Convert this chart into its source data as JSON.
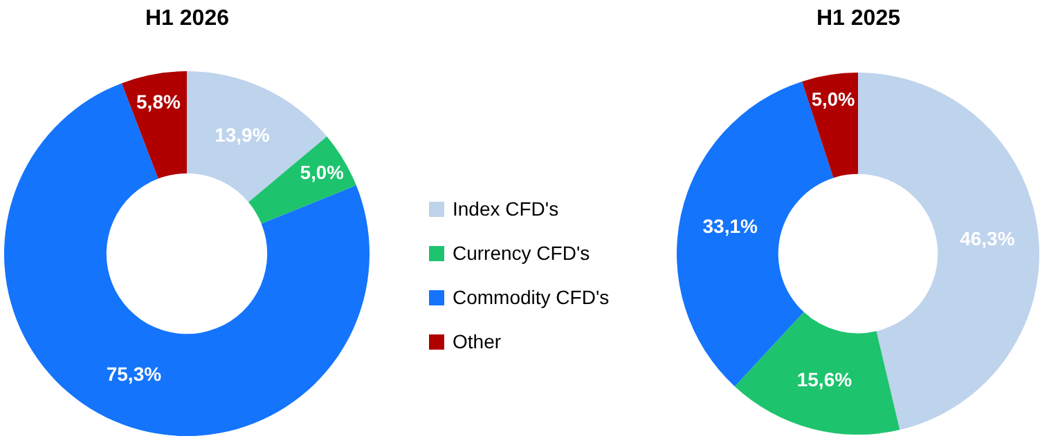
{
  "chart_data": [
    {
      "type": "donut",
      "title": "H1 2026",
      "categories": [
        "Index CFD's",
        "Currency CFD's",
        "Commodity CFD's",
        "Other"
      ],
      "values": [
        13.9,
        5.0,
        75.3,
        5.8
      ],
      "colors": [
        "#bed3ec",
        "#1ec36e",
        "#1474fc",
        "#b00000"
      ],
      "value_labels": [
        "13,9%",
        "5,0%",
        "75,3%",
        "5,8%"
      ],
      "legend": "right"
    },
    {
      "type": "donut",
      "title": "H1 2025",
      "categories": [
        null,
        null,
        null,
        null
      ],
      "values": [
        46.3,
        15.6,
        33.1,
        5.0
      ],
      "colors": [
        "#bed3ec",
        "#1ec36e",
        "#1474fc",
        "#b00000"
      ],
      "value_labels": [
        "46,3%",
        "15,6%",
        "33,1%",
        "5,0%"
      ],
      "legend": false
    }
  ]
}
